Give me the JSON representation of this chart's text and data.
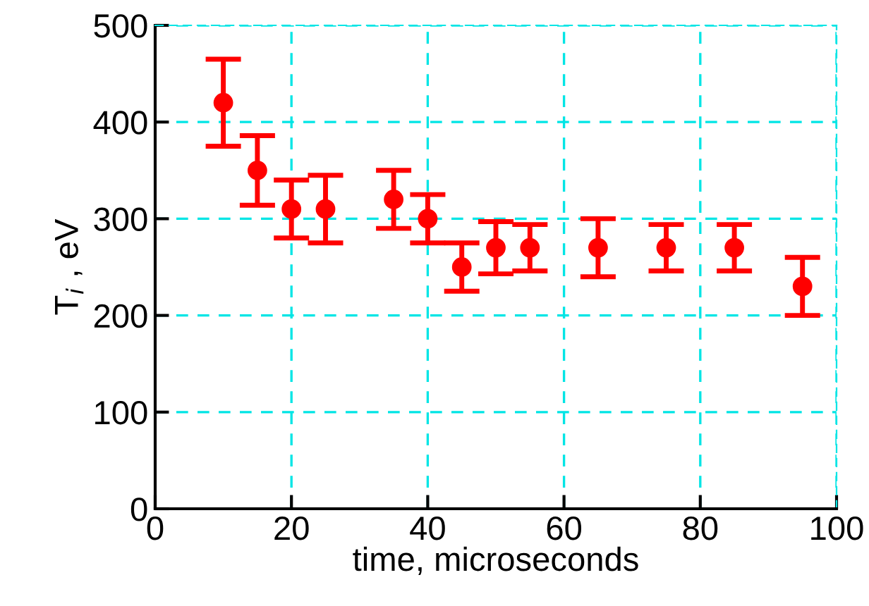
{
  "chart_data": {
    "type": "scatter",
    "xlabel": "time, microseconds",
    "ylabel": "T$_{i}$ , eV",
    "x": [
      10,
      15,
      20,
      25,
      35,
      40,
      45,
      50,
      55,
      65,
      75,
      85,
      95
    ],
    "series": [
      {
        "color": "#ff0000",
        "values": [
          420,
          350,
          310,
          310,
          320,
          300,
          250,
          270,
          270,
          270,
          270,
          270,
          230
        ],
        "errors": [
          45,
          36,
          30,
          35,
          30,
          25,
          25,
          27,
          24,
          30,
          24,
          24,
          30
        ]
      }
    ],
    "xlim": [
      0,
      100
    ],
    "xticks": [
      0,
      20,
      40,
      60,
      80,
      100
    ],
    "ylim": [
      0,
      500
    ],
    "yticks": [
      0,
      100,
      200,
      300,
      400,
      500
    ],
    "grid": true,
    "marker": "circle"
  }
}
